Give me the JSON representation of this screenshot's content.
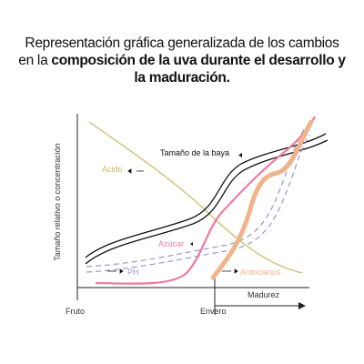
{
  "title": {
    "normal": "Representación gráfica generalizada de los cambios en la ",
    "bold": "composición de la uva durante el desarrollo y la maduración."
  },
  "axes": {
    "y_label": "Tamaño relativo o concentración",
    "x_start": "Fruto",
    "x_mid": "Envero",
    "x_arrow": "Madurez"
  },
  "curves": {
    "size": "Tamaño de la baya",
    "acid": "Ácido",
    "sugar": "Azúcar",
    "ph": "PH",
    "anthocyanins": "Antocianos"
  }
}
